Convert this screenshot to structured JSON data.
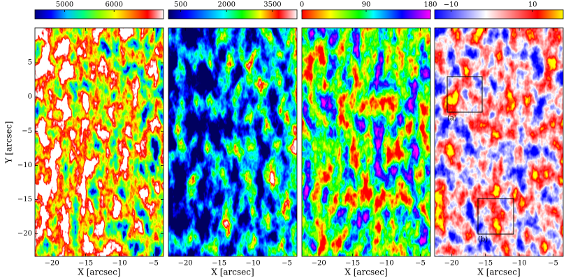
{
  "chart_data": [
    {
      "type": "image",
      "colorbar": {
        "lim": [
          4400,
          7000
        ],
        "ticks": [
          5000,
          6000
        ],
        "colormap": [
          "#000080",
          "#0000ff",
          "#00bfff",
          "#00ff80",
          "#80ff00",
          "#ffff00",
          "#ff8000",
          "#ff0000",
          "#ffffff"
        ]
      },
      "xlabel": "X [arcsec]",
      "ylabel": "Y [arcsec]",
      "xlim": [
        -22.5,
        -3.5
      ],
      "xticks": [
        {
          "value": -20,
          "label": "−20"
        },
        {
          "value": -15,
          "label": "−15"
        },
        {
          "value": -10,
          "label": "−10"
        },
        {
          "value": -5,
          "label": "−5"
        }
      ],
      "ylim": [
        -23.3,
        10.1
      ],
      "yticks": [
        5,
        0,
        {
          "value": -5,
          "label": "−5"
        },
        {
          "value": -10,
          "label": "−10"
        },
        {
          "value": -15,
          "label": "−15"
        },
        {
          "value": -20,
          "label": "−20"
        }
      ]
    },
    {
      "type": "image",
      "colorbar": {
        "lim": [
          100,
          4300
        ],
        "ticks": [
          500,
          2000,
          3500
        ],
        "colormap": [
          "#000060",
          "#0000ff",
          "#0080ff",
          "#00ffff",
          "#00ff00",
          "#ffff00",
          "#ff0000",
          "#ffffff"
        ]
      },
      "xlabel": "X [arcsec]",
      "xlim": [
        -22.5,
        -3.5
      ],
      "xticks": [
        {
          "value": -20,
          "label": "−20"
        },
        {
          "value": -15,
          "label": "−15"
        },
        {
          "value": -10,
          "label": "−10"
        },
        {
          "value": -5,
          "label": "−5"
        }
      ]
    },
    {
      "type": "image",
      "colorbar": {
        "lim": [
          0,
          180
        ],
        "ticks": [
          0,
          90,
          180
        ],
        "colormap": [
          "#ff0000",
          "#ff8000",
          "#ffff00",
          "#80ff00",
          "#00ff00",
          "#00ffff",
          "#0080ff",
          "#0000ff",
          "#8000ff",
          "#ff00ff"
        ]
      },
      "xlabel": "X [arcsec]",
      "xlim": [
        -22.5,
        -3.5
      ],
      "xticks": [
        {
          "value": -20,
          "label": "−20"
        },
        {
          "value": -15,
          "label": "−15"
        },
        {
          "value": -10,
          "label": "−10"
        },
        {
          "value": -5,
          "label": "−5"
        }
      ]
    },
    {
      "type": "image",
      "colorbar": {
        "lim": [
          -14,
          17.5
        ],
        "ticks": [
          {
            "value": -10,
            "label": "−10"
          },
          10
        ],
        "colormap": [
          "#0000ff",
          "#8080ff",
          "#ffffff",
          "#ff8080",
          "#ff0000",
          "#ffff00"
        ]
      },
      "xlabel": "X [arcsec]",
      "xlim": [
        -22.5,
        -3.5
      ],
      "xticks": [
        {
          "value": -20,
          "label": "−20"
        },
        {
          "value": -15,
          "label": "−15"
        },
        {
          "value": -10,
          "label": "−10"
        },
        {
          "value": -5,
          "label": "−5"
        }
      ],
      "annotations": [
        "(a)",
        "(b)"
      ]
    }
  ]
}
